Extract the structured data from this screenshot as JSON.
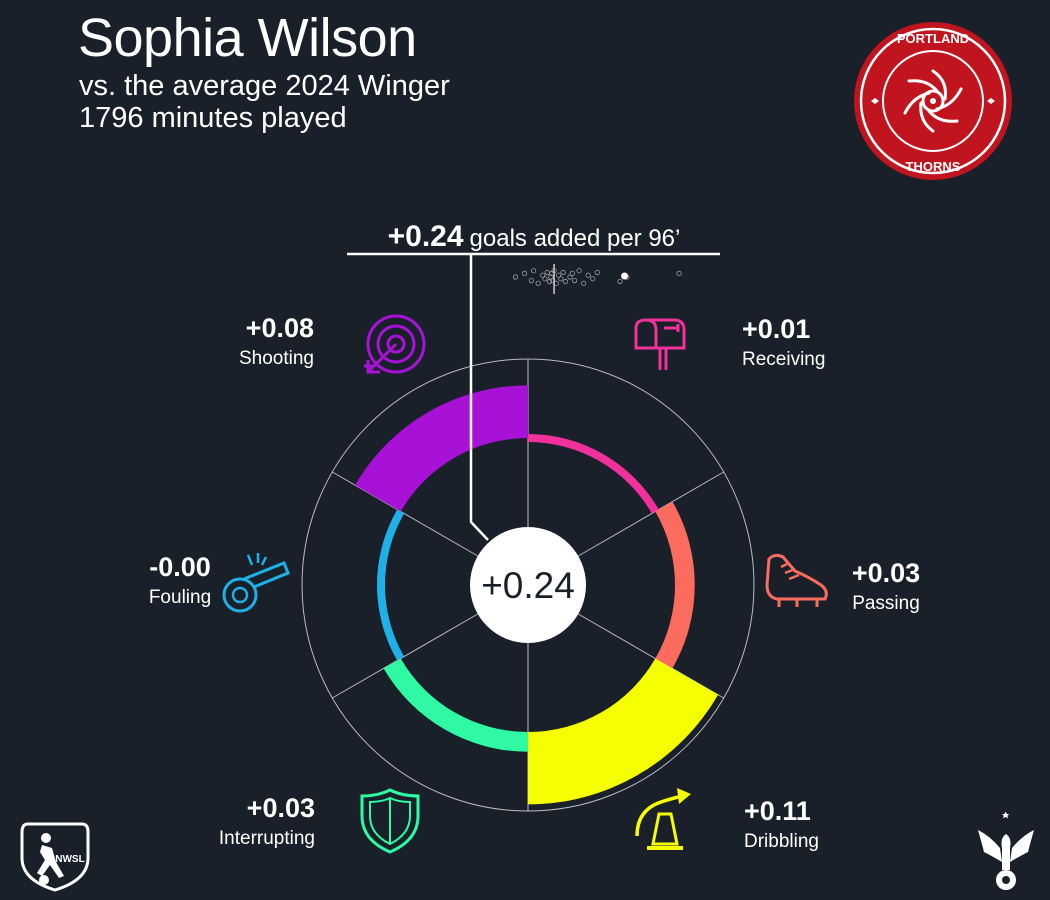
{
  "header": {
    "player_name": "Sophia Wilson",
    "comparison": "vs. the average 2024 Winger",
    "minutes": "1796 minutes played"
  },
  "chart_data": {
    "type": "radial-bar",
    "total": {
      "value_label": "+0.24",
      "unit_label": "goals added per 96’",
      "center_label": "+0.24",
      "value": 0.24
    },
    "rlim": [
      -0.06,
      0.12
    ],
    "segments": [
      {
        "name": "Receiving",
        "value_label": "+0.01",
        "value": 0.01,
        "color": "#f0319b",
        "icon": "mailbox-icon"
      },
      {
        "name": "Passing",
        "value_label": "+0.03",
        "value": 0.03,
        "color": "#fb6c5f",
        "icon": "cleat-icon"
      },
      {
        "name": "Dribbling",
        "value_label": "+0.11",
        "value": 0.11,
        "color": "#f6ff00",
        "icon": "cone-icon"
      },
      {
        "name": "Interrupting",
        "value_label": "+0.03",
        "value": 0.03,
        "color": "#2ff9a3",
        "icon": "shield-icon"
      },
      {
        "name": "Fouling",
        "value_label": "-0.00",
        "value": -0.003,
        "color": "#1fb0e8",
        "icon": "whistle-icon"
      },
      {
        "name": "Shooting",
        "value_label": "+0.08",
        "value": 0.08,
        "color": "#a712d6",
        "icon": "target-icon"
      }
    ],
    "distribution": {
      "highlight": 0.24,
      "mean": 0.085,
      "xlim": [
        -0.1,
        0.45
      ],
      "others": [
        0.0,
        0.02,
        0.035,
        0.04,
        0.05,
        0.06,
        0.065,
        0.07,
        0.075,
        0.078,
        0.08,
        0.082,
        0.085,
        0.09,
        0.095,
        0.1,
        0.105,
        0.11,
        0.12,
        0.125,
        0.13,
        0.14,
        0.15,
        0.16,
        0.17,
        0.18,
        0.23,
        0.245,
        0.36
      ]
    }
  }
}
